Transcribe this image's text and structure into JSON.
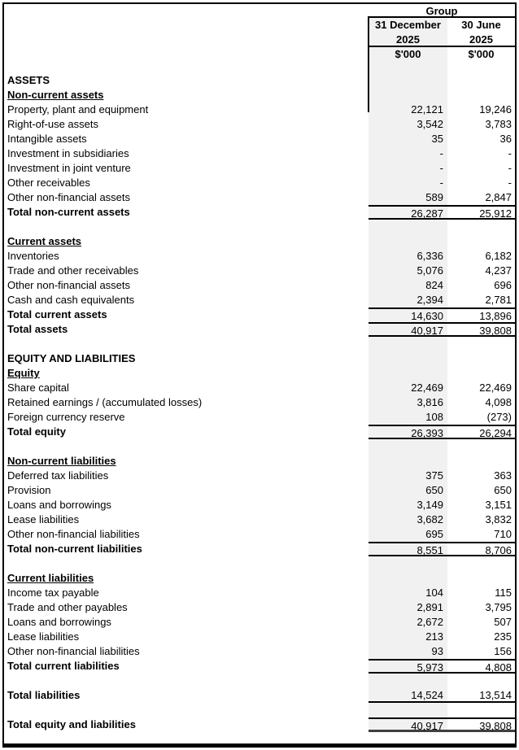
{
  "statement": {
    "header": {
      "group_label": "Group",
      "columns": [
        {
          "line1": "31 December",
          "line2": "2025",
          "units": "$'000"
        },
        {
          "line1": "30 June",
          "line2": "2025",
          "units": "$'000"
        }
      ]
    },
    "rows": [
      {
        "type": "section",
        "label": "ASSETS"
      },
      {
        "type": "subheader",
        "label": "Non-current assets"
      },
      {
        "type": "item",
        "label": "Property, plant and equipment",
        "v1": "22,121",
        "v2": "19,246"
      },
      {
        "type": "item",
        "label": "Right-of-use assets",
        "v1": "3,542",
        "v2": "3,783"
      },
      {
        "type": "item",
        "label": "Intangible assets",
        "v1": "35",
        "v2": "36"
      },
      {
        "type": "item",
        "label": "Investment in subsidiaries",
        "v1": "-",
        "v2": "-"
      },
      {
        "type": "item",
        "label": "Investment in joint venture",
        "v1": "-",
        "v2": "-"
      },
      {
        "type": "item",
        "label": "Other receivables",
        "v1": "-",
        "v2": "-"
      },
      {
        "type": "item",
        "label": "Other non-financial assets",
        "v1": "589",
        "v2": "2,847"
      },
      {
        "type": "total",
        "label": "Total non-current assets",
        "v1": "26,287",
        "v2": "25,912",
        "border_top": true,
        "border_bottom": "thin"
      },
      {
        "type": "blank"
      },
      {
        "type": "subheader",
        "label": "Current assets"
      },
      {
        "type": "item",
        "label": "Inventories",
        "v1": "6,336",
        "v2": "6,182"
      },
      {
        "type": "item",
        "label": "Trade and other receivables",
        "v1": "5,076",
        "v2": "4,237"
      },
      {
        "type": "item",
        "label": "Other non-financial assets",
        "v1": "824",
        "v2": "696"
      },
      {
        "type": "item",
        "label": "Cash and cash equivalents",
        "v1": "2,394",
        "v2": "2,781"
      },
      {
        "type": "total",
        "label": "Total current assets",
        "v1": "14,630",
        "v2": "13,896",
        "border_top": true
      },
      {
        "type": "total",
        "label": "Total assets",
        "v1": "40,917",
        "v2": "39,808",
        "border_top": true,
        "border_bottom": "thin"
      },
      {
        "type": "blank"
      },
      {
        "type": "section",
        "label": "EQUITY AND LIABILITIES"
      },
      {
        "type": "subheader",
        "label": "Equity"
      },
      {
        "type": "item",
        "label": "Share capital",
        "v1": "22,469",
        "v2": "22,469"
      },
      {
        "type": "item",
        "label": "Retained earnings / (accumulated losses)",
        "v1": "3,816",
        "v2": "4,098"
      },
      {
        "type": "item",
        "label": "Foreign currency reserve",
        "v1": "108",
        "v2": "(273)"
      },
      {
        "type": "total",
        "label": "Total equity",
        "v1": "26,393",
        "v2": "26,294",
        "border_top": true,
        "border_bottom": "thin"
      },
      {
        "type": "blank"
      },
      {
        "type": "subheader",
        "label": "Non-current liabilities"
      },
      {
        "type": "item",
        "label": "Deferred tax liabilities",
        "v1": "375",
        "v2": "363"
      },
      {
        "type": "item",
        "label": "Provision",
        "v1": "650",
        "v2": "650"
      },
      {
        "type": "item",
        "label": "Loans and borrowings",
        "v1": "3,149",
        "v2": "3,151"
      },
      {
        "type": "item",
        "label": "Lease liabilities",
        "v1": "3,682",
        "v2": "3,832"
      },
      {
        "type": "item",
        "label": "Other non-financial liabilities",
        "v1": "695",
        "v2": "710"
      },
      {
        "type": "total",
        "label": "Total non-current liabilities",
        "v1": "8,551",
        "v2": "8,706",
        "border_top": true,
        "border_bottom": "thin"
      },
      {
        "type": "blank"
      },
      {
        "type": "subheader",
        "label": "Current liabilities"
      },
      {
        "type": "item",
        "label": "Income tax payable",
        "v1": "104",
        "v2": "115"
      },
      {
        "type": "item",
        "label": "Trade and other payables",
        "v1": "2,891",
        "v2": "3,795"
      },
      {
        "type": "item",
        "label": "Loans and borrowings",
        "v1": "2,672",
        "v2": "507"
      },
      {
        "type": "item",
        "label": "Lease liabilities",
        "v1": "213",
        "v2": "235"
      },
      {
        "type": "item",
        "label": "Other non-financial liabilities",
        "v1": "93",
        "v2": "156"
      },
      {
        "type": "total",
        "label": "Total current liabilities",
        "v1": "5,973",
        "v2": "4,808",
        "border_top": true,
        "border_bottom": "thin"
      },
      {
        "type": "blank"
      },
      {
        "type": "total",
        "label": "Total liabilities",
        "v1": "14,524",
        "v2": "13,514",
        "border_bottom": "thin"
      },
      {
        "type": "blank"
      },
      {
        "type": "total",
        "label": "Total equity and liabilities",
        "v1": "40,917",
        "v2": "39,808",
        "border_top": true,
        "border_bottom": "thick"
      }
    ],
    "colors": {
      "column_shade": "#F1F1F1",
      "rule": "#000000",
      "grand_total_rule": "#3F3F3F"
    }
  }
}
